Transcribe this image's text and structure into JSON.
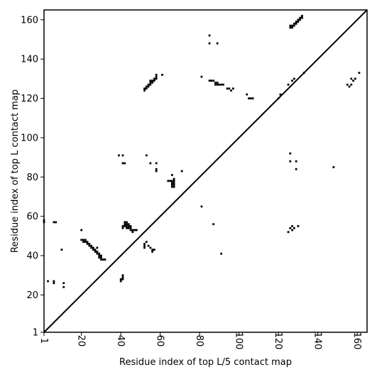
{
  "chart_data": {
    "type": "heatmap",
    "xlabel": "Residue index of top L/5 contact map",
    "ylabel": "Residue index of top L contact map",
    "xlim": [
      1,
      165
    ],
    "ylim": [
      1,
      165
    ],
    "x_ticks": [
      1,
      20,
      40,
      60,
      80,
      100,
      120,
      140,
      160
    ],
    "y_ticks": [
      1,
      20,
      40,
      60,
      80,
      100,
      120,
      140,
      160
    ],
    "diagonal_line": true,
    "point_color": "#000000",
    "upper_triangle_points": [
      [
        126,
        156
      ],
      [
        126,
        157
      ],
      [
        127,
        157
      ],
      [
        127,
        156
      ],
      [
        128,
        157
      ],
      [
        128,
        158
      ],
      [
        129,
        158
      ],
      [
        129,
        159
      ],
      [
        130,
        159
      ],
      [
        130,
        160
      ],
      [
        131,
        160
      ],
      [
        131,
        161
      ],
      [
        132,
        161
      ],
      [
        132,
        162
      ],
      [
        121,
        122
      ],
      [
        120,
        120
      ],
      [
        125,
        127
      ],
      [
        127,
        129
      ],
      [
        128,
        130
      ],
      [
        133,
        133
      ],
      [
        132,
        161
      ],
      [
        106,
        120
      ],
      [
        107,
        120
      ],
      [
        105,
        120
      ],
      [
        104,
        122
      ],
      [
        96,
        124
      ],
      [
        95,
        125
      ],
      [
        94,
        125
      ],
      [
        97,
        125
      ],
      [
        92,
        127
      ],
      [
        91,
        127
      ],
      [
        89,
        127
      ],
      [
        90,
        127
      ],
      [
        89,
        128
      ],
      [
        88,
        128
      ],
      [
        88,
        127
      ],
      [
        86,
        129
      ],
      [
        85,
        129
      ],
      [
        81,
        131
      ],
      [
        87,
        129
      ],
      [
        85,
        152
      ],
      [
        85,
        148
      ],
      [
        89,
        148
      ],
      [
        158,
        129
      ],
      [
        157,
        130
      ],
      [
        159,
        130
      ],
      [
        161,
        133
      ],
      [
        155,
        127
      ],
      [
        156,
        126
      ],
      [
        157,
        127
      ]
    ],
    "lower_triangle_points": [
      [
        1,
        58
      ],
      [
        1,
        57
      ],
      [
        6,
        57
      ],
      [
        7,
        57
      ],
      [
        3,
        27
      ],
      [
        6,
        26
      ],
      [
        6,
        27
      ],
      [
        11,
        26
      ],
      [
        11,
        24
      ],
      [
        10,
        43
      ],
      [
        20,
        53
      ],
      [
        20,
        48
      ],
      [
        21,
        48
      ],
      [
        22,
        48
      ],
      [
        21,
        47
      ],
      [
        22,
        47
      ],
      [
        23,
        47
      ],
      [
        23,
        46
      ],
      [
        24,
        46
      ],
      [
        24,
        45
      ],
      [
        25,
        45
      ],
      [
        25,
        44
      ],
      [
        26,
        44
      ],
      [
        26,
        43
      ],
      [
        27,
        43
      ],
      [
        27,
        42
      ],
      [
        28,
        42
      ],
      [
        28,
        41
      ],
      [
        29,
        41
      ],
      [
        29,
        40
      ],
      [
        30,
        40
      ],
      [
        30,
        39
      ],
      [
        29,
        39
      ],
      [
        30,
        38
      ],
      [
        31,
        38
      ],
      [
        32,
        38
      ],
      [
        28,
        44
      ],
      [
        40,
        27
      ],
      [
        40,
        28
      ],
      [
        41,
        28
      ],
      [
        41,
        29
      ],
      [
        41,
        30
      ],
      [
        41,
        54
      ],
      [
        41,
        55
      ],
      [
        42,
        55
      ],
      [
        42,
        56
      ],
      [
        42,
        57
      ],
      [
        43,
        57
      ],
      [
        43,
        56
      ],
      [
        43,
        55
      ],
      [
        44,
        55
      ],
      [
        44,
        54
      ],
      [
        45,
        54
      ],
      [
        45,
        53
      ],
      [
        46,
        53
      ],
      [
        46,
        52
      ],
      [
        47,
        53
      ],
      [
        48,
        53
      ],
      [
        44,
        56
      ],
      [
        45,
        55
      ],
      [
        43,
        54
      ],
      [
        39,
        91
      ],
      [
        41,
        91
      ],
      [
        41,
        87
      ],
      [
        42,
        87
      ],
      [
        52,
        44
      ],
      [
        52,
        45
      ],
      [
        52,
        46
      ],
      [
        53,
        47
      ],
      [
        54,
        45
      ],
      [
        55,
        44
      ],
      [
        56,
        43
      ],
      [
        56,
        42
      ],
      [
        57,
        43
      ],
      [
        53,
        91
      ],
      [
        55,
        87
      ],
      [
        58,
        87
      ],
      [
        58,
        84
      ],
      [
        58,
        83
      ],
      [
        52,
        125
      ],
      [
        52,
        124
      ],
      [
        53,
        125
      ],
      [
        53,
        126
      ],
      [
        54,
        126
      ],
      [
        54,
        127
      ],
      [
        55,
        127
      ],
      [
        55,
        128
      ],
      [
        56,
        128
      ],
      [
        56,
        129
      ],
      [
        57,
        129
      ],
      [
        57,
        130
      ],
      [
        58,
        130
      ],
      [
        58,
        131
      ],
      [
        58,
        132
      ],
      [
        61,
        132
      ],
      [
        55,
        129
      ],
      [
        64,
        78
      ],
      [
        65,
        78
      ],
      [
        66,
        78
      ],
      [
        66,
        77
      ],
      [
        66,
        76
      ],
      [
        66,
        75
      ],
      [
        67,
        75
      ],
      [
        67,
        76
      ],
      [
        67,
        77
      ],
      [
        67,
        78
      ],
      [
        67,
        79
      ],
      [
        66,
        81
      ],
      [
        71,
        83
      ],
      [
        81,
        65
      ],
      [
        87,
        56
      ],
      [
        91,
        41
      ],
      [
        125,
        52
      ],
      [
        126,
        54
      ],
      [
        127,
        53
      ],
      [
        127,
        55
      ],
      [
        128,
        54
      ],
      [
        130,
        55
      ],
      [
        126,
        88
      ],
      [
        129,
        88
      ],
      [
        126,
        92
      ],
      [
        129,
        84
      ],
      [
        148,
        85
      ]
    ]
  }
}
